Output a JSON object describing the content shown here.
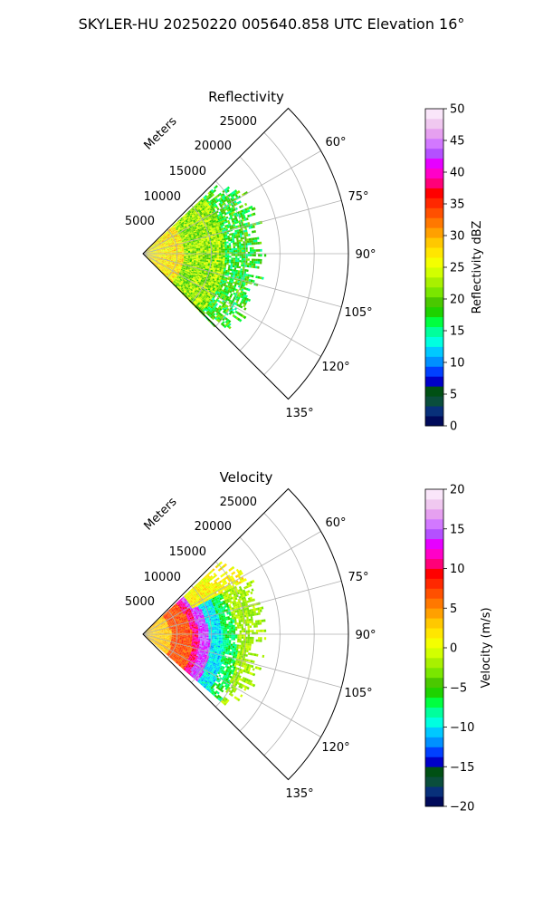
{
  "figure": {
    "suptitle": "SKYLER-HU  20250220  005640.858 UTC Elevation 16°"
  },
  "chart_data": [
    {
      "type": "polar-sector",
      "title": "Reflectivity",
      "radial_axis_label": "Meters",
      "radial_ticks": [
        "5000",
        "10000",
        "15000",
        "20000",
        "25000"
      ],
      "radial_tick_values": [
        5000,
        10000,
        15000,
        20000,
        25000
      ],
      "radial_range": [
        0,
        30000
      ],
      "angle_ticks": [
        "60°",
        "75°",
        "90°",
        "105°",
        "120°",
        "135°"
      ],
      "angle_tick_values": [
        60,
        75,
        90,
        105,
        120,
        135
      ],
      "angle_range": [
        45,
        135
      ],
      "grid": true,
      "colorbar": {
        "label": "Reflectivity dBZ",
        "ticks": [
          "0",
          "5",
          "10",
          "15",
          "20",
          "25",
          "30",
          "35",
          "40",
          "45",
          "50"
        ],
        "range": [
          0,
          50
        ],
        "colors": [
          "#000a5a",
          "#08307a",
          "#0a4e3c",
          "#005014",
          "#0000c8",
          "#0040ff",
          "#0090ff",
          "#00c8ff",
          "#00ffe0",
          "#00ff9c",
          "#00ff40",
          "#1ed200",
          "#4ac800",
          "#7ae600",
          "#a8f000",
          "#d2ff00",
          "#f4ff00",
          "#ffe600",
          "#ffc800",
          "#ffa000",
          "#ff7800",
          "#ff5000",
          "#ff2800",
          "#ff0000",
          "#ff0078",
          "#ff00c8",
          "#e600ff",
          "#b450ff",
          "#d278ff",
          "#e6a0f0",
          "#f0c8f0",
          "#fae6fa"
        ]
      },
      "data_extent": {
        "angle_range_deg": [
          47,
          135
        ],
        "range_m": [
          0,
          18000
        ]
      },
      "dominant_values": {
        "near_range_dbz": 27,
        "mid_range_dbz": 22,
        "far_range_dbz": 18
      }
    },
    {
      "type": "polar-sector",
      "title": "Velocity",
      "radial_axis_label": "Meters",
      "radial_ticks": [
        "5000",
        "10000",
        "15000",
        "20000",
        "25000"
      ],
      "radial_tick_values": [
        5000,
        10000,
        15000,
        20000,
        25000
      ],
      "radial_range": [
        0,
        30000
      ],
      "angle_ticks": [
        "60°",
        "75°",
        "90°",
        "105°",
        "120°",
        "135°"
      ],
      "angle_tick_values": [
        60,
        75,
        90,
        105,
        120,
        135
      ],
      "angle_range": [
        45,
        135
      ],
      "grid": true,
      "colorbar": {
        "label": "Velocity (m/s)",
        "ticks": [
          "−20",
          "−15",
          "−10",
          "−5",
          "0",
          "5",
          "10",
          "15",
          "20"
        ],
        "range": [
          -20,
          20
        ],
        "colors": [
          "#000a5a",
          "#08307a",
          "#0a4e3c",
          "#005014",
          "#0000c8",
          "#0040ff",
          "#0090ff",
          "#00c8ff",
          "#00ffe0",
          "#00ff9c",
          "#00ff40",
          "#1ed200",
          "#4ac800",
          "#7ae600",
          "#a8f000",
          "#d2ff00",
          "#f4ff00",
          "#ffe600",
          "#ffc800",
          "#ffa000",
          "#ff7800",
          "#ff5000",
          "#ff2800",
          "#ff0000",
          "#ff0078",
          "#ff00c8",
          "#e600ff",
          "#b450ff",
          "#d278ff",
          "#e6a0f0",
          "#f0c8f0",
          "#fae6fa"
        ]
      },
      "data_extent": {
        "angle_range_deg": [
          47,
          130
        ],
        "range_m": [
          0,
          18000
        ]
      },
      "velocity_bands_m_s": [
        {
          "range_m": [
            0,
            4000
          ],
          "velocity": 3
        },
        {
          "range_m": [
            4000,
            7000
          ],
          "velocity": 7
        },
        {
          "range_m": [
            7000,
            8000
          ],
          "velocity": 11
        },
        {
          "range_m": [
            8000,
            9500
          ],
          "velocity": 14
        },
        {
          "range_m": [
            9500,
            11500
          ],
          "velocity": -10
        },
        {
          "range_m": [
            11500,
            13500
          ],
          "velocity": -7
        },
        {
          "range_m": [
            13500,
            18000
          ],
          "velocity": -2
        }
      ]
    }
  ]
}
